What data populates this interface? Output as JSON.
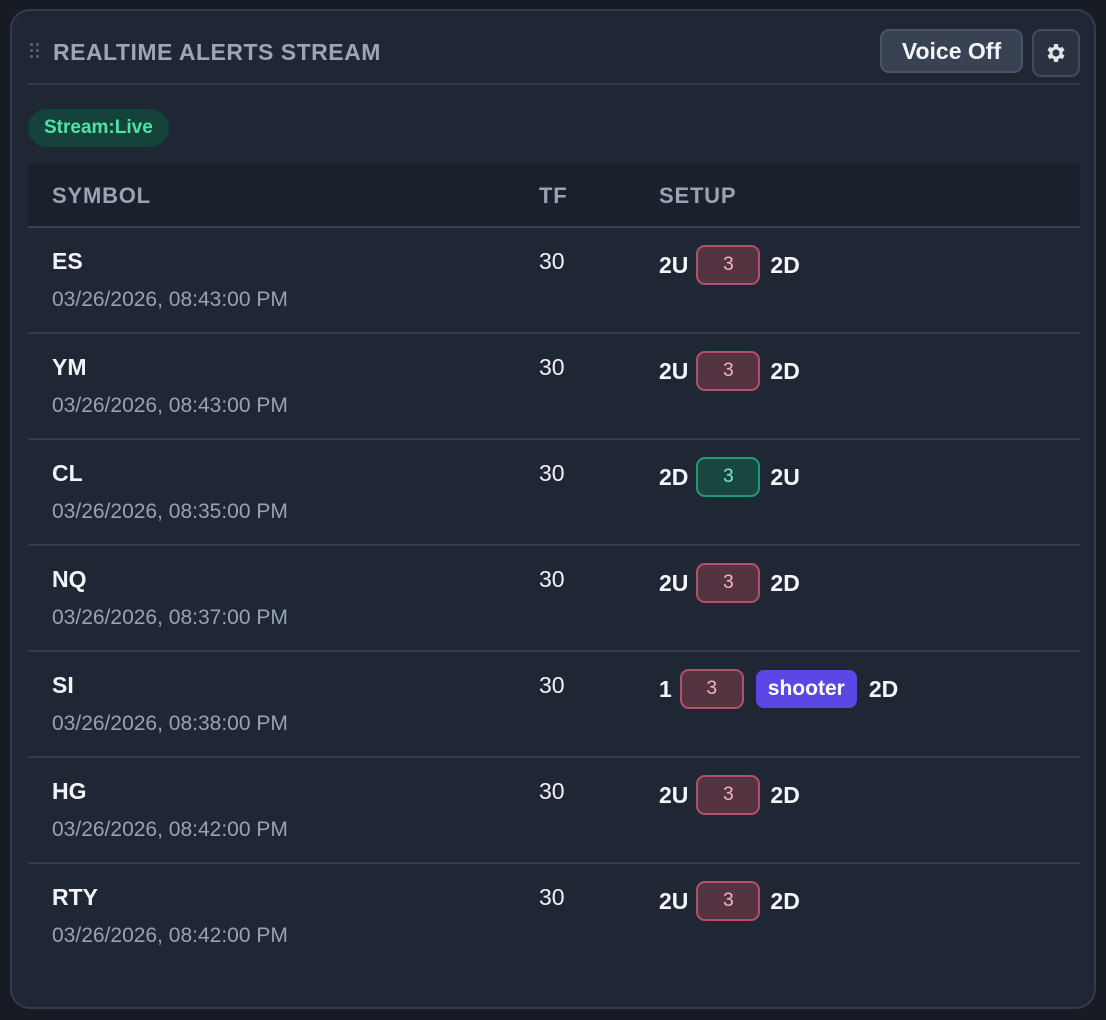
{
  "panel": {
    "title": "REALTIME ALERTS STREAM",
    "voice_button": "Voice Off",
    "stream_status": "Stream:Live",
    "settings_icon": "gear-icon",
    "drag_icon": "drag-handle-icon"
  },
  "table": {
    "headers": {
      "symbol": "SYMBOL",
      "tf": "TF",
      "setup": "SETUP"
    },
    "rows": [
      {
        "symbol": "ES",
        "timestamp": "03/26/2026, 08:43:00 PM",
        "tf": "30",
        "setup_before": "2U",
        "pill": "3",
        "pill_color": "red",
        "tag": "",
        "setup_after": "2D"
      },
      {
        "symbol": "YM",
        "timestamp": "03/26/2026, 08:43:00 PM",
        "tf": "30",
        "setup_before": "2U",
        "pill": "3",
        "pill_color": "red",
        "tag": "",
        "setup_after": "2D"
      },
      {
        "symbol": "CL",
        "timestamp": "03/26/2026, 08:35:00 PM",
        "tf": "30",
        "setup_before": "2D",
        "pill": "3",
        "pill_color": "green",
        "tag": "",
        "setup_after": "2U"
      },
      {
        "symbol": "NQ",
        "timestamp": "03/26/2026, 08:37:00 PM",
        "tf": "30",
        "setup_before": "2U",
        "pill": "3",
        "pill_color": "red",
        "tag": "",
        "setup_after": "2D"
      },
      {
        "symbol": "SI",
        "timestamp": "03/26/2026, 08:38:00 PM",
        "tf": "30",
        "setup_before": "1",
        "pill": "3",
        "pill_color": "red",
        "tag": "shooter",
        "setup_after": "2D"
      },
      {
        "symbol": "HG",
        "timestamp": "03/26/2026, 08:42:00 PM",
        "tf": "30",
        "setup_before": "2U",
        "pill": "3",
        "pill_color": "red",
        "tag": "",
        "setup_after": "2D"
      },
      {
        "symbol": "RTY",
        "timestamp": "03/26/2026, 08:42:00 PM",
        "tf": "30",
        "setup_before": "2U",
        "pill": "3",
        "pill_color": "red",
        "tag": "",
        "setup_after": "2D"
      }
    ]
  },
  "colors": {
    "background": "#161b24",
    "panel": "#1f2735",
    "live_badge_text": "#4ee3a6",
    "red_pill_border": "#b5506a",
    "green_pill_border": "#1f9a73",
    "shooter_tag": "#5b47e6"
  }
}
